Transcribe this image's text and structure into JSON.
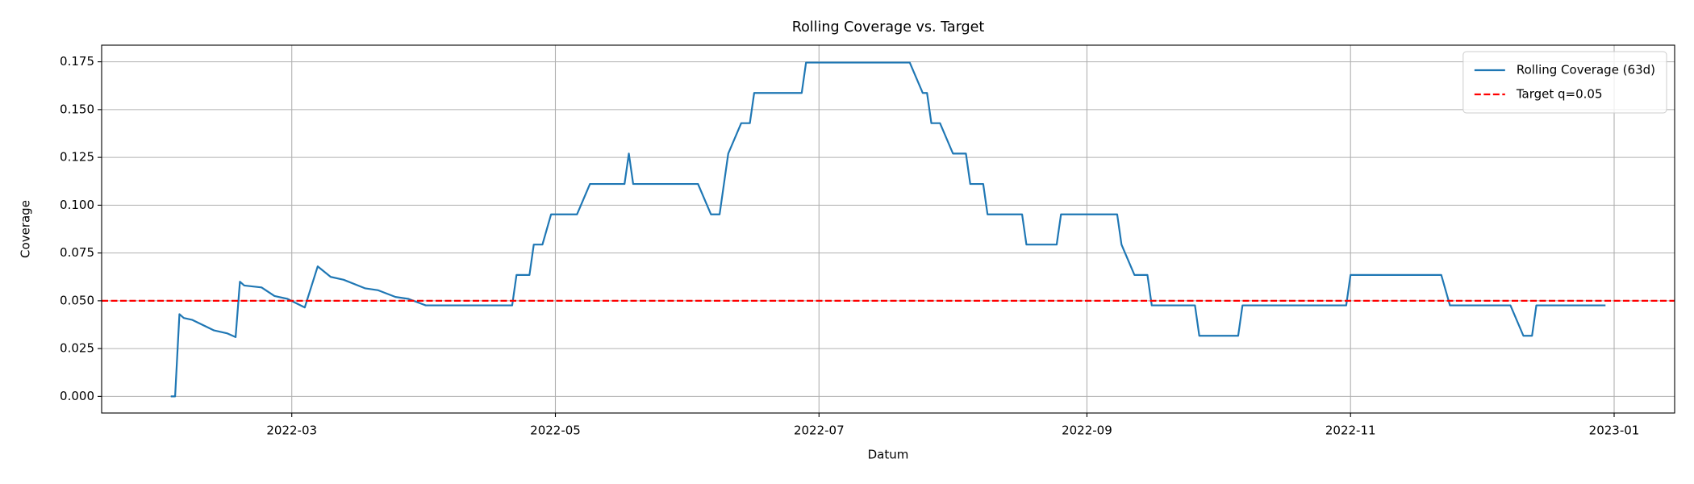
{
  "chart_data": {
    "type": "line",
    "title": "Rolling Coverage vs. Target",
    "x_label": "Datum",
    "y_label": "Coverage",
    "grid": true,
    "legend": "upper right",
    "xlim": [
      "2022-01-16",
      "2023-01-15"
    ],
    "xticks": [
      {
        "value": "2022-03-01",
        "label": "2022-03"
      },
      {
        "value": "2022-05-01",
        "label": "2022-05"
      },
      {
        "value": "2022-07-01",
        "label": "2022-07"
      },
      {
        "value": "2022-09-01",
        "label": "2022-09"
      },
      {
        "value": "2022-11-01",
        "label": "2022-11"
      },
      {
        "value": "2023-01-01",
        "label": "2023-01"
      }
    ],
    "ylim": [
      -0.0087,
      0.1837
    ],
    "yticks": [
      {
        "value": 0,
        "label": "0.000"
      },
      {
        "value": 0.025,
        "label": "0.025"
      },
      {
        "value": 0.05,
        "label": "0.050"
      },
      {
        "value": 0.075,
        "label": "0.075"
      },
      {
        "value": 0.1,
        "label": "0.100"
      },
      {
        "value": 0.125,
        "label": "0.125"
      },
      {
        "value": 0.15,
        "label": "0.150"
      },
      {
        "value": 0.175,
        "label": "0.175"
      }
    ],
    "series": [
      {
        "name": "Rolling Coverage (63d)",
        "color": "#1f77b4",
        "x": [
          "2022-02-01",
          "2022-02-02",
          "2022-02-03",
          "2022-02-04",
          "2022-02-06",
          "2022-02-11",
          "2022-02-14",
          "2022-02-16",
          "2022-02-17",
          "2022-02-18",
          "2022-02-22",
          "2022-02-25",
          "2022-02-28",
          "2022-03-04",
          "2022-03-07",
          "2022-03-10",
          "2022-03-13",
          "2022-03-18",
          "2022-03-21",
          "2022-03-25",
          "2022-03-28",
          "2022-04-01",
          "2022-04-21",
          "2022-04-22",
          "2022-04-25",
          "2022-04-26",
          "2022-04-28",
          "2022-04-30",
          "2022-05-06",
          "2022-05-09",
          "2022-05-17",
          "2022-05-18",
          "2022-05-19",
          "2022-06-03",
          "2022-06-06",
          "2022-06-08",
          "2022-06-10",
          "2022-06-13",
          "2022-06-15",
          "2022-06-16",
          "2022-06-27",
          "2022-06-28",
          "2022-07-22",
          "2022-07-25",
          "2022-07-26",
          "2022-07-27",
          "2022-07-29",
          "2022-08-01",
          "2022-08-04",
          "2022-08-05",
          "2022-08-08",
          "2022-08-09",
          "2022-08-17",
          "2022-08-18",
          "2022-08-25",
          "2022-08-26",
          "2022-09-08",
          "2022-09-09",
          "2022-09-12",
          "2022-09-15",
          "2022-09-16",
          "2022-09-26",
          "2022-09-27",
          "2022-10-06",
          "2022-10-07",
          "2022-10-31",
          "2022-11-01",
          "2022-11-22",
          "2022-11-24",
          "2022-12-08",
          "2022-12-11",
          "2022-12-13",
          "2022-12-14",
          "2022-12-30"
        ],
        "values": [
          0,
          0,
          0.043,
          0.041,
          0.04,
          0.0345,
          0.033,
          0.031,
          0.06,
          0.058,
          0.057,
          0.0525,
          0.051,
          0.0465,
          0.068,
          0.0625,
          0.061,
          0.0565,
          0.0555,
          0.052,
          0.051,
          0.0476,
          0.0476,
          0.0635,
          0.0635,
          0.0794,
          0.0794,
          0.0952,
          0.0952,
          0.1111,
          0.1111,
          0.127,
          0.1111,
          0.1111,
          0.0952,
          0.0952,
          0.127,
          0.1429,
          0.1429,
          0.1587,
          0.1587,
          0.1746,
          0.1746,
          0.1587,
          0.1587,
          0.1429,
          0.1429,
          0.127,
          0.127,
          0.1111,
          0.1111,
          0.0952,
          0.0952,
          0.0794,
          0.0794,
          0.0952,
          0.0952,
          0.0794,
          0.0635,
          0.0635,
          0.0476,
          0.0476,
          0.0317,
          0.0317,
          0.0476,
          0.0476,
          0.0635,
          0.0635,
          0.0476,
          0.0476,
          0.0317,
          0.0317,
          0.0476,
          0.0476
        ]
      }
    ],
    "hlines": [
      {
        "name": "Target q=0.05",
        "color": "#ff0000",
        "y": 0.05,
        "style": "dashed"
      }
    ]
  }
}
